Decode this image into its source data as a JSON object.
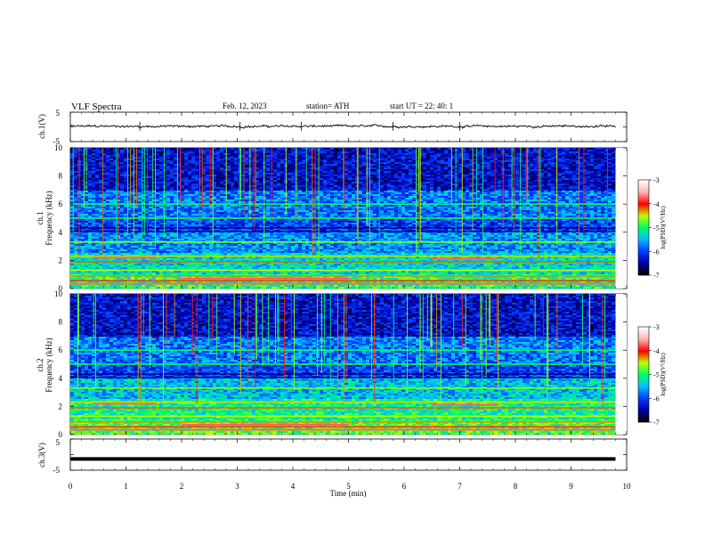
{
  "header": {
    "title": "VLF  Spectra",
    "date": "Feb. 12, 2023",
    "station": "station= ATH",
    "start": "start  UT  =    22: 40: 1"
  },
  "chart_data": [
    {
      "type": "line",
      "name": "ch1-waveform",
      "ylabel": "ch.1(V)",
      "ylim": [
        -5,
        5
      ],
      "yticks": [
        "5",
        "-5"
      ],
      "xlim": [
        0,
        10
      ],
      "baseline": 0.2,
      "amplitude": 0.6,
      "end_time": 9.8
    },
    {
      "type": "heatmap",
      "name": "ch1-spectrogram",
      "ylabel_line1": "ch.1",
      "ylabel_line2": "Frequency  (kHz)",
      "ylim": [
        0,
        10
      ],
      "yticks": [
        "0",
        "2",
        "4",
        "6",
        "8",
        "10"
      ],
      "xlim": [
        0,
        10
      ],
      "end_time": 9.8
    },
    {
      "type": "heatmap",
      "name": "ch2-spectrogram",
      "ylabel_line1": "ch.2",
      "ylabel_line2": "Frequency  (kHz)",
      "ylim": [
        0,
        10
      ],
      "yticks": [
        "0",
        "2",
        "4",
        "6",
        "8",
        "10"
      ],
      "xlim": [
        0,
        10
      ],
      "end_time": 9.8
    },
    {
      "type": "line",
      "name": "ch3-waveform",
      "ylabel": "ch.3(V)",
      "ylim": [
        -5,
        5
      ],
      "yticks": [
        "5",
        "-5"
      ],
      "xlim": [
        0,
        10
      ],
      "baseline": -1.4,
      "end_time": 9.8,
      "xlabel": "Time  (min)",
      "xticks": [
        "0",
        "1",
        "2",
        "3",
        "4",
        "5",
        "6",
        "7",
        "8",
        "9",
        "10"
      ]
    }
  ],
  "colorbar": {
    "label": "log(PSD)(V²/Hz)",
    "ticks": [
      "-3",
      "-4",
      "-5",
      "-6",
      "-7"
    ],
    "range": [
      -7,
      -3
    ],
    "colors": [
      "#000000",
      "#0000b0",
      "#0040ff",
      "#00c0ff",
      "#00ff60",
      "#c0ff00",
      "#ff0000",
      "#ffb0b0",
      "#ffffff"
    ]
  }
}
